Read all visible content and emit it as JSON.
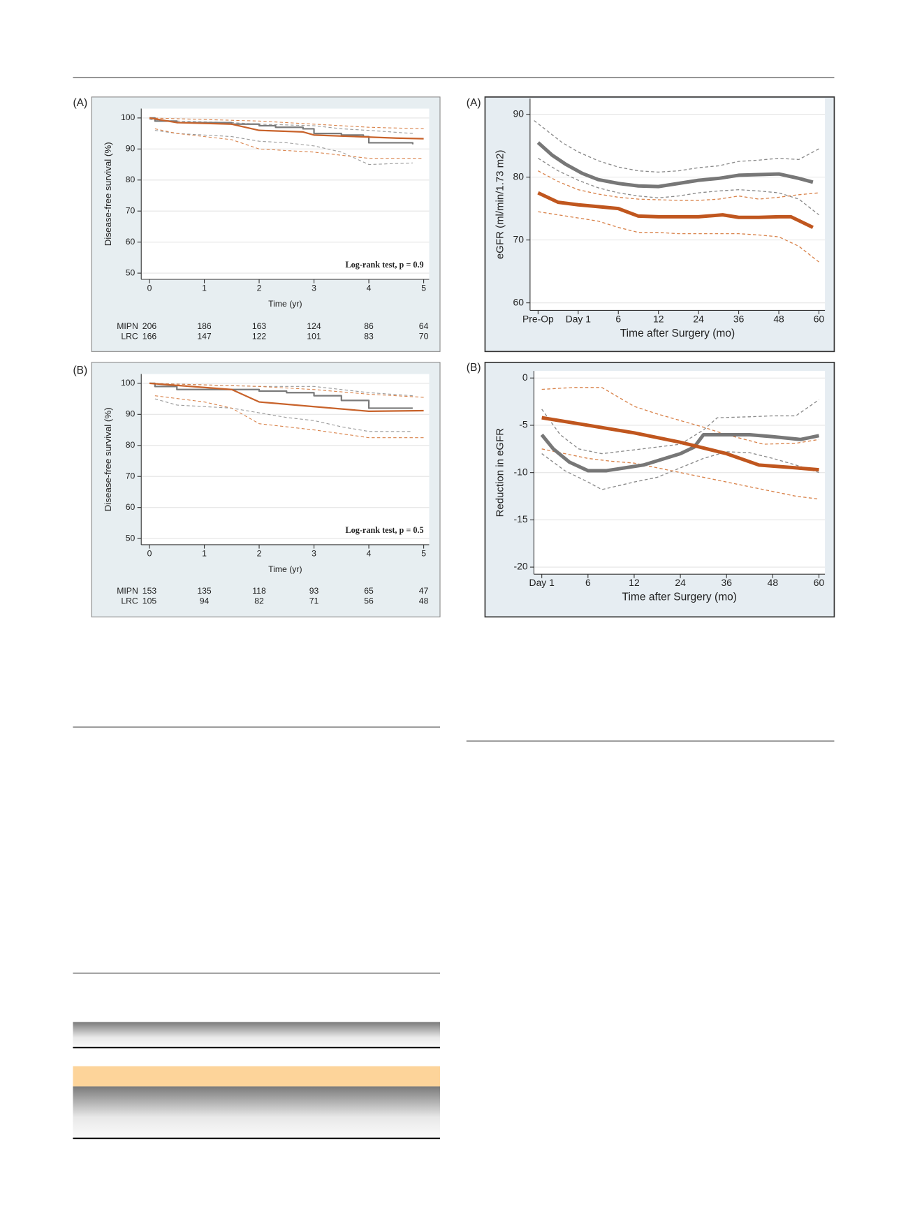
{
  "chart_data": [
    {
      "type": "line",
      "panel": "(A)",
      "xlabel": "Time (yr)",
      "ylabel": "Disease-free survival (%)",
      "annotation": "Log-rank test, p = 0.9",
      "xlim": [
        -0.15,
        5.1
      ],
      "ylim": [
        48,
        103
      ],
      "xticks": [
        0,
        1,
        2,
        3,
        4,
        5
      ],
      "yticks": [
        50,
        60,
        70,
        80,
        90,
        100
      ],
      "grid": true,
      "series": [
        {
          "name": "MIPN",
          "color": "#7a7a7a",
          "step": true,
          "x": [
            0,
            0.1,
            0.5,
            1.5,
            2,
            2.3,
            2.8,
            3,
            3.5,
            3.9,
            4,
            4.8
          ],
          "values": [
            100,
            99,
            98.5,
            98,
            97.5,
            97,
            96.5,
            95,
            94.5,
            94,
            92,
            91.5
          ]
        },
        {
          "name": "LRC",
          "color": "#c8622a",
          "x": [
            0,
            0.5,
            1.5,
            2,
            2.8,
            3,
            4.5,
            5
          ],
          "values": [
            100,
            98.5,
            98,
            96,
            95.5,
            94.5,
            93.5,
            93.3
          ]
        },
        {
          "color": "#9a9a9a",
          "dashed": true,
          "x": [
            0,
            0.5,
            1.5,
            2,
            3,
            3.5,
            4,
            4.8
          ],
          "values": [
            99.5,
            99,
            98.5,
            98,
            97.5,
            96.5,
            96,
            95
          ]
        },
        {
          "color": "#9a9a9a",
          "dashed": true,
          "x": [
            0.1,
            0.5,
            1.5,
            2,
            2.5,
            3,
            3.5,
            4,
            4.8
          ],
          "values": [
            96,
            95,
            94,
            92.5,
            92,
            91,
            89,
            85,
            85.5
          ]
        },
        {
          "color": "#d9834b",
          "dashed": true,
          "x": [
            0,
            1,
            2,
            3,
            4,
            5
          ],
          "values": [
            100,
            99.5,
            99,
            98,
            97,
            96.5
          ]
        },
        {
          "color": "#d9834b",
          "dashed": true,
          "x": [
            0.1,
            0.5,
            1.5,
            2,
            3,
            4,
            5
          ],
          "values": [
            96.5,
            95,
            93,
            90,
            89,
            87,
            87
          ]
        }
      ],
      "risk_table": {
        "x": [
          0,
          1,
          2,
          3,
          4,
          5
        ],
        "rows": [
          {
            "label": "MIPN",
            "values": [
              206,
              186,
              163,
              124,
              86,
              64
            ]
          },
          {
            "label": "LRC",
            "values": [
              166,
              147,
              122,
              101,
              83,
              70
            ]
          }
        ]
      }
    },
    {
      "type": "line",
      "panel": "(B)",
      "xlabel": "Time (yr)",
      "ylabel": "Disease-free survival (%)",
      "annotation": "Log-rank test, p = 0.5",
      "xlim": [
        -0.15,
        5.1
      ],
      "ylim": [
        48,
        103
      ],
      "xticks": [
        0,
        1,
        2,
        3,
        4,
        5
      ],
      "yticks": [
        50,
        60,
        70,
        80,
        90,
        100
      ],
      "grid": true,
      "series": [
        {
          "name": "MIPN",
          "color": "#7a7a7a",
          "step": true,
          "x": [
            0,
            0.1,
            0.5,
            2,
            2.5,
            3,
            3.5,
            4,
            4.8
          ],
          "values": [
            100,
            99,
            98,
            97.5,
            97,
            96,
            94.5,
            92,
            92
          ]
        },
        {
          "name": "LRC",
          "color": "#c8622a",
          "x": [
            0,
            1.5,
            2,
            3,
            4,
            5
          ],
          "values": [
            100,
            98,
            94,
            92.5,
            91,
            91.2
          ]
        },
        {
          "color": "#9a9a9a",
          "dashed": true,
          "x": [
            0,
            1,
            2,
            3,
            3.5,
            4,
            4.8
          ],
          "values": [
            100,
            99.5,
            99,
            99,
            98,
            97,
            96
          ]
        },
        {
          "color": "#9a9a9a",
          "dashed": true,
          "x": [
            0.1,
            0.5,
            1.5,
            2.5,
            3,
            3.5,
            4,
            4.8
          ],
          "values": [
            95,
            93,
            92,
            89,
            88,
            86,
            84.5,
            84.5
          ]
        },
        {
          "color": "#d9834b",
          "dashed": true,
          "x": [
            0,
            1,
            2,
            3,
            4,
            5
          ],
          "values": [
            100,
            99.5,
            99,
            98,
            96.5,
            95.5
          ]
        },
        {
          "color": "#d9834b",
          "dashed": true,
          "x": [
            0.1,
            1,
            1.5,
            2,
            3,
            4,
            5
          ],
          "values": [
            96,
            94,
            92,
            87,
            85,
            82.5,
            82.5
          ]
        }
      ],
      "risk_table": {
        "x": [
          0,
          1,
          2,
          3,
          4,
          5
        ],
        "rows": [
          {
            "label": "MIPN",
            "values": [
              153,
              135,
              118,
              93,
              65,
              47
            ]
          },
          {
            "label": "LRC",
            "values": [
              105,
              94,
              82,
              71,
              56,
              48
            ]
          }
        ]
      }
    },
    {
      "type": "line",
      "panel": "(A)",
      "xlabel": "Time after Surgery (mo)",
      "ylabel": "eGFR (ml/min/1.73 m2)",
      "xlim": [
        -0.2,
        7.15
      ],
      "ylim": [
        58.8,
        92.5
      ],
      "xticks": [
        {
          "value": 0,
          "label": "Pre-Op"
        },
        {
          "value": 1,
          "label": "Day 1"
        },
        {
          "value": 2,
          "label": "6"
        },
        {
          "value": 3,
          "label": "12"
        },
        {
          "value": 4,
          "label": "24"
        },
        {
          "value": 5,
          "label": "36"
        },
        {
          "value": 6,
          "label": "48"
        },
        {
          "value": 7,
          "label": "60"
        }
      ],
      "yticks": [
        60,
        70,
        80,
        90
      ],
      "grid": true,
      "series": [
        {
          "color": "#777777",
          "x": [
            0,
            0.35,
            0.7,
            1.1,
            1.5,
            2,
            2.5,
            3,
            3.5,
            4,
            4.5,
            5,
            5.5,
            6,
            6.5,
            6.85
          ],
          "values": [
            85.5,
            83.5,
            82,
            80.6,
            79.6,
            79,
            78.6,
            78.5,
            79,
            79.5,
            79.8,
            80.3,
            80.4,
            80.5,
            79.8,
            79.2
          ]
        },
        {
          "color": "#c0561e",
          "x": [
            0,
            0.5,
            1,
            1.5,
            2,
            2.5,
            3,
            4,
            4.6,
            5,
            5.5,
            6,
            6.3,
            6.85
          ],
          "values": [
            77.5,
            76,
            75.6,
            75.3,
            75,
            73.8,
            73.7,
            73.7,
            74,
            73.6,
            73.6,
            73.7,
            73.7,
            72
          ]
        },
        {
          "color": "#8a8a8a",
          "dashed": true,
          "x": [
            -0.1,
            0.3,
            0.6,
            1,
            1.5,
            2,
            2.5,
            3,
            3.5,
            4,
            4.5,
            5,
            5.5,
            6,
            6.5,
            7
          ],
          "values": [
            89,
            87,
            85.5,
            84,
            82.6,
            81.6,
            81,
            80.8,
            81,
            81.5,
            81.8,
            82.5,
            82.7,
            83,
            82.8,
            84.5
          ]
        },
        {
          "color": "#8a8a8a",
          "dashed": true,
          "x": [
            0,
            0.5,
            1,
            1.5,
            2,
            2.5,
            3,
            3.5,
            4,
            4.5,
            5,
            5.5,
            6,
            6.5,
            7
          ],
          "values": [
            83,
            81,
            79.5,
            78.3,
            77.5,
            77,
            76.7,
            77,
            77.5,
            77.8,
            78,
            77.8,
            77.5,
            76.5,
            74
          ]
        },
        {
          "color": "#d9834b",
          "dashed": true,
          "x": [
            0,
            0.5,
            1,
            1.5,
            2,
            2.5,
            3,
            3.5,
            4,
            4.5,
            5,
            5.5,
            6,
            6.5,
            7
          ],
          "values": [
            81,
            79.3,
            78,
            77.3,
            76.8,
            76.5,
            76.4,
            76.3,
            76.3,
            76.5,
            77,
            76.5,
            76.8,
            77.2,
            77.5
          ]
        },
        {
          "color": "#d9834b",
          "dashed": true,
          "x": [
            0,
            0.5,
            1,
            1.5,
            2,
            2.5,
            3,
            3.5,
            4,
            4.5,
            5,
            5.5,
            6,
            6.5,
            7
          ],
          "values": [
            74.5,
            74,
            73.5,
            73,
            72,
            71.2,
            71.2,
            71,
            71,
            71,
            71,
            70.8,
            70.5,
            69,
            66.5
          ]
        }
      ]
    },
    {
      "type": "line",
      "panel": "(B)",
      "xlabel": "Time after Surgery (mo)",
      "ylabel": "Reduction in eGFR",
      "xlim": [
        -0.17,
        6.13
      ],
      "ylim": [
        -20.75,
        0.75
      ],
      "xticks": [
        {
          "value": 0,
          "label": "Day 1"
        },
        {
          "value": 1,
          "label": "6"
        },
        {
          "value": 2,
          "label": "12"
        },
        {
          "value": 3,
          "label": "24"
        },
        {
          "value": 4,
          "label": "36"
        },
        {
          "value": 5,
          "label": "48"
        },
        {
          "value": 6,
          "label": "60"
        }
      ],
      "yticks": [
        -20,
        -15,
        -10,
        -5,
        0
      ],
      "grid": true,
      "series": [
        {
          "color": "#777777",
          "x": [
            0,
            0.25,
            0.6,
            1,
            1.4,
            1.8,
            2.2,
            2.6,
            3,
            3.3,
            3.5,
            4,
            4.5,
            5,
            5.6,
            6
          ],
          "values": [
            -6,
            -7.5,
            -8.9,
            -9.8,
            -9.8,
            -9.5,
            -9.2,
            -8.6,
            -8,
            -7.3,
            -6,
            -6,
            -6,
            -6.2,
            -6.5,
            -6.1
          ]
        },
        {
          "color": "#c0561e",
          "x": [
            0,
            1,
            2,
            2.5,
            3,
            3.5,
            4,
            4.7,
            5.5,
            6
          ],
          "values": [
            -4.2,
            -5,
            -5.8,
            -6.3,
            -6.8,
            -7.4,
            -8,
            -9.2,
            -9.5,
            -9.7
          ]
        },
        {
          "color": "#8a8a8a",
          "dashed": true,
          "x": [
            0,
            0.4,
            0.8,
            1.3,
            2,
            2.5,
            3,
            3.5,
            3.8,
            4.5,
            5,
            5.5,
            6
          ],
          "values": [
            -3.3,
            -6,
            -7.5,
            -8,
            -7.6,
            -7.3,
            -7,
            -5.5,
            -4.2,
            -4.1,
            -4,
            -4,
            -2.3
          ]
        },
        {
          "color": "#8a8a8a",
          "dashed": true,
          "x": [
            0,
            0.5,
            1,
            1.3,
            2,
            2.5,
            3,
            3.5,
            4,
            4.5,
            5,
            5.5,
            6
          ],
          "values": [
            -8,
            -9.8,
            -11,
            -11.8,
            -11,
            -10.5,
            -9.5,
            -8.5,
            -7.8,
            -7.9,
            -8.5,
            -9.2,
            -10
          ]
        },
        {
          "color": "#d9834b",
          "dashed": true,
          "x": [
            0,
            0.7,
            1.3,
            2,
            2.5,
            3,
            3.5,
            4,
            4.8,
            5.5,
            6
          ],
          "values": [
            -1.2,
            -1,
            -1,
            -3,
            -3.8,
            -4.5,
            -5.2,
            -6,
            -7,
            -6.9,
            -6.5
          ]
        },
        {
          "color": "#d9834b",
          "dashed": true,
          "x": [
            0,
            0.5,
            1,
            1.5,
            2,
            2.5,
            3,
            3.5,
            4,
            4.5,
            5,
            5.5,
            6
          ],
          "values": [
            -7.5,
            -8,
            -8.5,
            -8.8,
            -9,
            -9.5,
            -10,
            -10.5,
            -11,
            -11.5,
            -12,
            -12.5,
            -12.8
          ]
        }
      ]
    }
  ]
}
